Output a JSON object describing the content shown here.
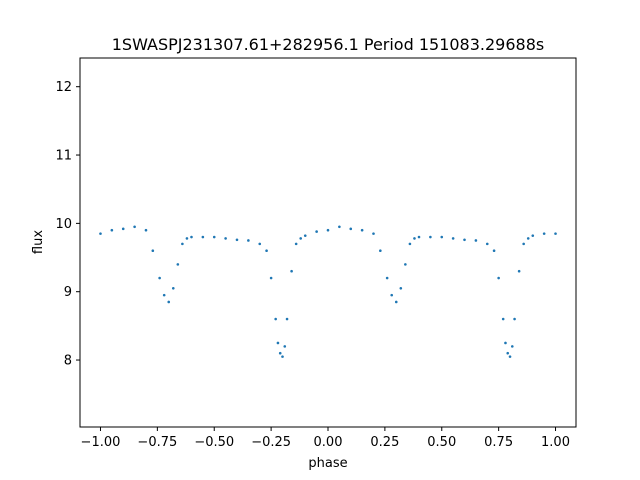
{
  "chart_data": {
    "type": "scatter",
    "title": "1SWASPJ231307.61+282956.1 Period 151083.29688s",
    "xlabel": "phase",
    "ylabel": "flux",
    "xlim": [
      -1.09,
      1.09
    ],
    "ylim": [
      7.02,
      12.42
    ],
    "xticks": [
      -1.0,
      -0.75,
      -0.5,
      -0.25,
      0.0,
      0.25,
      0.5,
      0.75,
      1.0
    ],
    "xtick_labels": [
      "−1.00",
      "−0.75",
      "−0.50",
      "−0.25",
      "0.00",
      "0.25",
      "0.50",
      "0.75",
      "1.00"
    ],
    "yticks": [
      8,
      9,
      10,
      11,
      12
    ],
    "ytick_labels": [
      "8",
      "9",
      "10",
      "11",
      "12"
    ],
    "grid": false,
    "marker_color": "#1f77b4",
    "series": [
      {
        "x": [
          -1.0,
          -0.95,
          -0.9,
          -0.85,
          -0.8,
          -0.77,
          -0.74,
          -0.72,
          -0.7,
          -0.68,
          -0.66,
          -0.64,
          -0.62,
          -0.6,
          -0.55,
          -0.5,
          -0.45,
          -0.4,
          -0.35,
          -0.3,
          -0.27,
          -0.25,
          -0.23,
          -0.22,
          -0.21,
          -0.2,
          -0.19,
          -0.18,
          -0.16,
          -0.14,
          -0.12,
          -0.1,
          -0.05,
          0.0,
          0.05,
          0.1,
          0.15,
          0.2,
          0.23,
          0.26,
          0.28,
          0.3,
          0.32,
          0.34,
          0.36,
          0.38,
          0.4,
          0.45,
          0.5,
          0.55,
          0.6,
          0.65,
          0.7,
          0.73,
          0.75,
          0.77,
          0.78,
          0.79,
          0.8,
          0.81,
          0.82,
          0.84,
          0.86,
          0.88,
          0.9,
          0.95,
          1.0
        ],
        "y": [
          9.85,
          9.9,
          9.92,
          9.95,
          9.9,
          9.6,
          9.2,
          8.95,
          8.85,
          9.05,
          9.4,
          9.7,
          9.78,
          9.8,
          9.8,
          9.8,
          9.78,
          9.76,
          9.75,
          9.7,
          9.6,
          9.2,
          8.6,
          8.25,
          8.1,
          8.05,
          8.2,
          8.6,
          9.3,
          9.7,
          9.78,
          9.82,
          9.88,
          9.9,
          9.95,
          9.92,
          9.9,
          9.85,
          9.6,
          9.2,
          8.95,
          8.85,
          9.05,
          9.4,
          9.7,
          9.78,
          9.8,
          9.8,
          9.8,
          9.78,
          9.76,
          9.75,
          9.7,
          9.6,
          9.2,
          8.6,
          8.25,
          8.1,
          8.05,
          8.2,
          8.6,
          9.3,
          9.7,
          9.78,
          9.82,
          9.85,
          9.85
        ]
      }
    ]
  }
}
